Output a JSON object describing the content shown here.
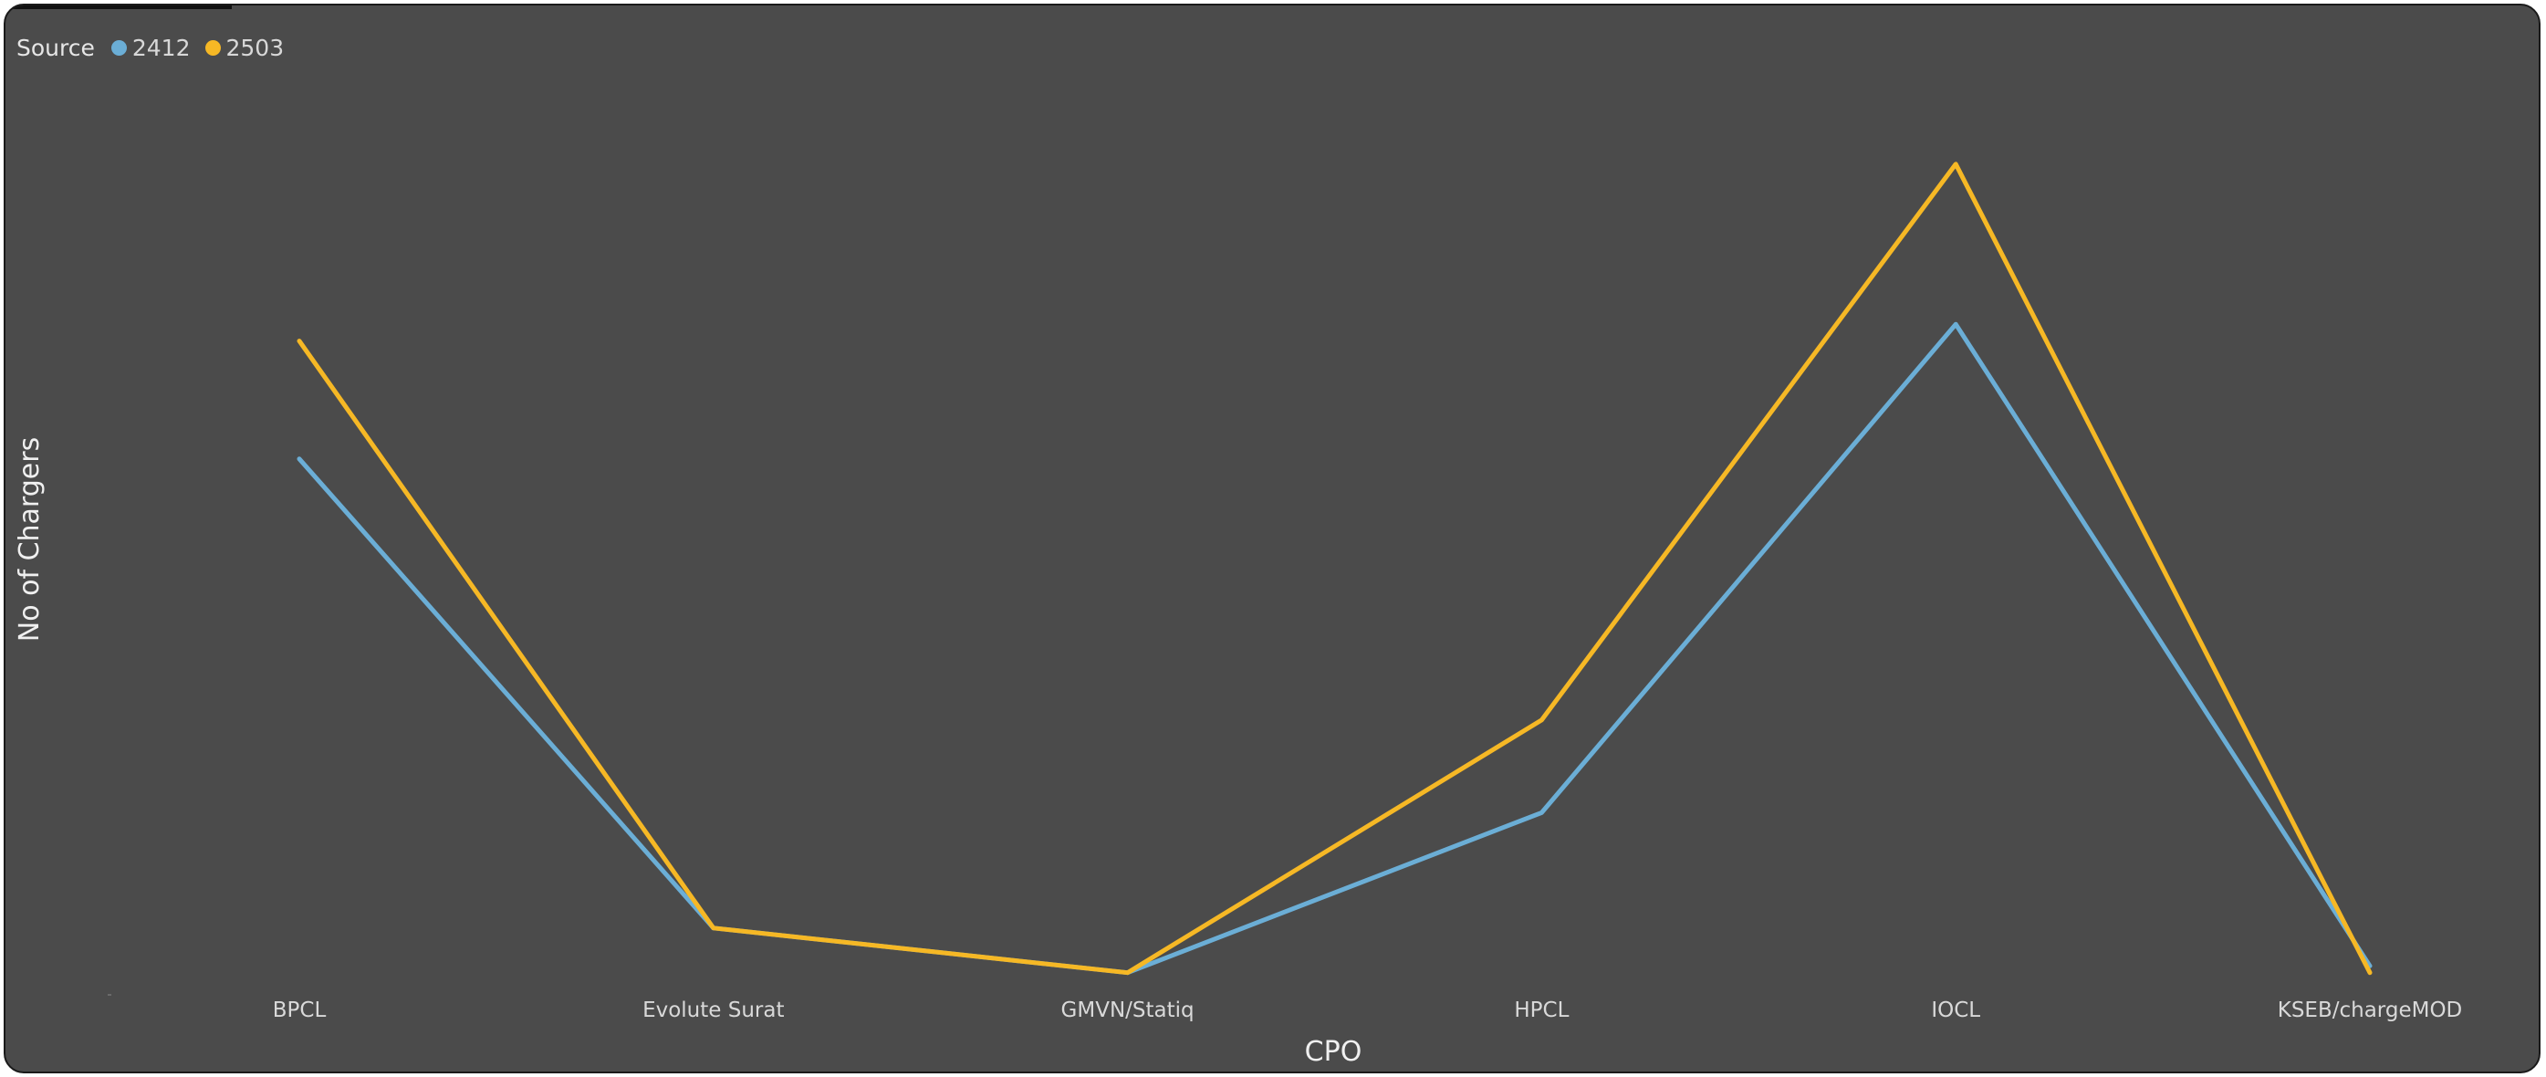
{
  "chart_data": {
    "type": "line",
    "categories": [
      "BPCL",
      "Evolute Surat",
      "GMVN/Statiq",
      "HPCL",
      "IOCL",
      "KSEB/chargeMOD"
    ],
    "series": [
      {
        "name": "2412",
        "color": "#6baed6",
        "values": [
          610,
          53,
          0,
          190,
          770,
          8
        ]
      },
      {
        "name": "2503",
        "color": "#f6b825",
        "values": [
          750,
          53,
          0,
          300,
          960,
          0
        ]
      }
    ],
    "xlabel": "CPO",
    "ylabel": "No of Chargers",
    "ylim": [
      -22,
      1040
    ],
    "legend": {
      "title": "Source",
      "position": "top-left"
    },
    "grid": false
  }
}
